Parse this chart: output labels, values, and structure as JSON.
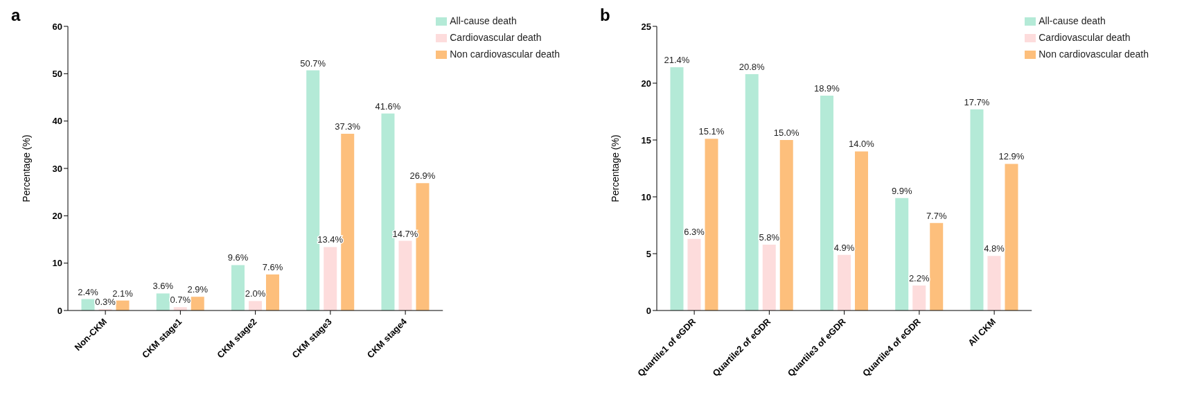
{
  "chart_data": [
    {
      "type": "bar",
      "title": "a",
      "ylabel": "Percentage (%)",
      "categories": [
        "Non-CKM",
        "CKM stage1",
        "CKM stage2",
        "CKM stage3",
        "CKM stage4"
      ],
      "series": [
        {
          "name": "All-cause death",
          "color": "#b4ead7",
          "values": [
            2.4,
            3.6,
            9.6,
            50.7,
            41.6
          ],
          "value_labels": [
            "2.4%",
            "3.6%",
            "9.6%",
            "50.7%",
            "41.6%"
          ]
        },
        {
          "name": "Cardiovascular death",
          "color": "#fddcdc",
          "values": [
            0.3,
            0.7,
            2.0,
            13.4,
            14.7
          ],
          "value_labels": [
            "0.3%",
            "0.7%",
            "2.0%",
            "13.4%",
            "14.7%"
          ]
        },
        {
          "name": "Non cardiovascular death",
          "color": "#fdbf7c",
          "values": [
            2.1,
            2.9,
            7.6,
            37.3,
            26.9
          ],
          "value_labels": [
            "2.1%",
            "2.9%",
            "7.6%",
            "37.3%",
            "26.9%"
          ]
        }
      ],
      "ylim": [
        0,
        60
      ],
      "yticks": [
        0,
        10,
        20,
        30,
        40,
        50,
        60
      ],
      "grid": false,
      "legend": "top right"
    },
    {
      "type": "bar",
      "title": "b",
      "ylabel": "Percentage (%)",
      "categories": [
        "Quartile1 of eGDR",
        "Quartile2 of eGDR",
        "Quartile3 of eGDR",
        "Quartile4 of eGDR",
        "All CKM"
      ],
      "series": [
        {
          "name": "All-cause death",
          "color": "#b4ead7",
          "values": [
            21.4,
            20.8,
            18.9,
            9.9,
            17.7
          ],
          "value_labels": [
            "21.4%",
            "20.8%",
            "18.9%",
            "9.9%",
            "17.7%"
          ]
        },
        {
          "name": "Cardiovascular death",
          "color": "#fddcdc",
          "values": [
            6.3,
            5.8,
            4.9,
            2.2,
            4.8
          ],
          "value_labels": [
            "6.3%",
            "5.8%",
            "4.9%",
            "2.2%",
            "4.8%"
          ]
        },
        {
          "name": "Non cardiovascular death",
          "color": "#fdbf7c",
          "values": [
            15.1,
            15.0,
            14.0,
            7.7,
            12.9
          ],
          "value_labels": [
            "15.1%",
            "15.0%",
            "14.0%",
            "7.7%",
            "12.9%"
          ]
        }
      ],
      "ylim": [
        0,
        25
      ],
      "yticks": [
        0,
        5,
        10,
        15,
        20,
        25
      ],
      "grid": false,
      "legend": "top right"
    }
  ]
}
